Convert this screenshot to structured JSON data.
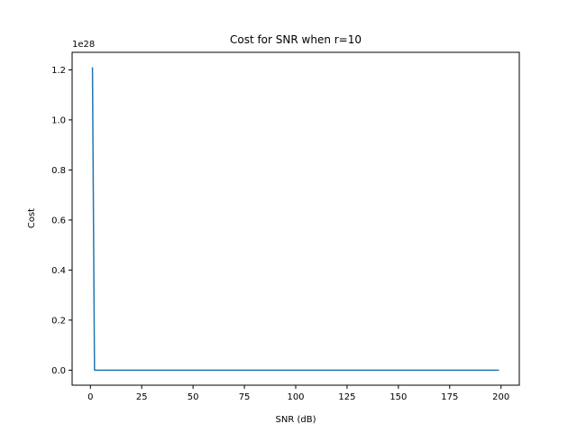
{
  "chart_data": {
    "type": "line",
    "title": "Cost for SNR when r=10",
    "xlabel": "SNR (dB)",
    "ylabel": "Cost",
    "y_offset_label": "1e28",
    "y_scale": 1e+28,
    "xlim": [
      -8.9,
      208.9
    ],
    "ylim": [
      -0.06,
      1.27
    ],
    "xticks": [
      0,
      25,
      50,
      75,
      100,
      125,
      150,
      175,
      200
    ],
    "xtick_labels": [
      "0",
      "25",
      "50",
      "75",
      "100",
      "125",
      "150",
      "175",
      "200"
    ],
    "yticks": [
      0.0,
      0.2,
      0.4,
      0.6,
      0.8,
      1.0,
      1.2
    ],
    "ytick_labels": [
      "0.0",
      "0.2",
      "0.4",
      "0.6",
      "0.8",
      "1.0",
      "1.2"
    ],
    "grid": false,
    "series": [
      {
        "color": "#1f77b4",
        "x": [
          1,
          2,
          199
        ],
        "y": [
          1.21,
          0.0,
          0.0
        ]
      }
    ]
  }
}
